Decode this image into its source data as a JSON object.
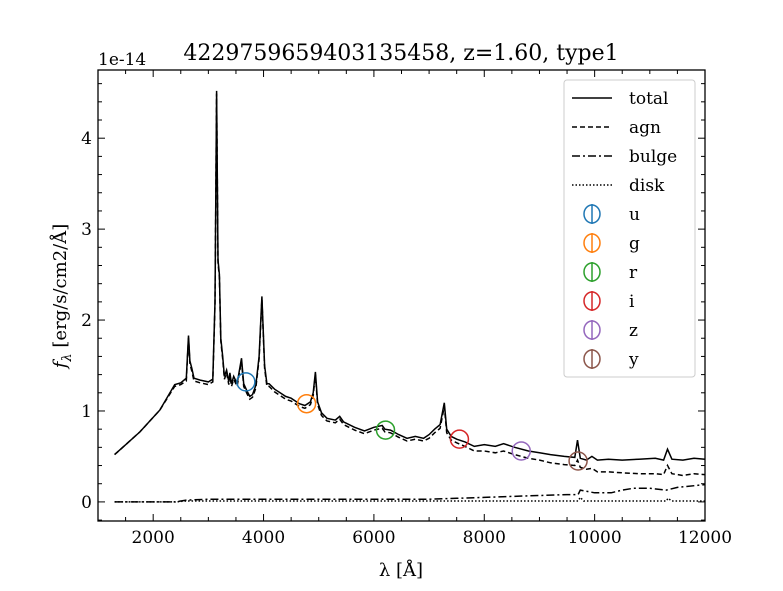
{
  "chart_data": {
    "type": "line",
    "title": "4229759659403135458, z=1.60, type1",
    "xlabel": "λ [Å]",
    "ylabel": "f_λ [erg/s/cm2/Å]",
    "ylabel_main": "f",
    "ylabel_sub": "λ",
    "ylabel_rest": " [erg/s/cm2/Å]",
    "offset_text": "1e-14",
    "xlim": [
      1000,
      12000
    ],
    "ylim": [
      -0.21,
      4.75
    ],
    "xticks": [
      2000,
      4000,
      6000,
      8000,
      10000,
      12000
    ],
    "xtick_labels": [
      "2000",
      "4000",
      "6000",
      "8000",
      "10000",
      "12000"
    ],
    "yticks": [
      0,
      1,
      2,
      3,
      4
    ],
    "ytick_labels": [
      "0",
      "1",
      "2",
      "3",
      "4"
    ],
    "legend_position": "upper right",
    "series": [
      {
        "name": "total",
        "style": "solid",
        "x": [
          1300,
          1760,
          2120,
          2390,
          2500,
          2600,
          2640,
          2665,
          2700,
          2740,
          2850,
          3000,
          3080,
          3120,
          3150,
          3175,
          3200,
          3225,
          3260,
          3290,
          3330,
          3370,
          3390,
          3420,
          3460,
          3520,
          3600,
          3640,
          3700,
          3750,
          3800,
          3860,
          3920,
          3970,
          4020,
          4060,
          4100,
          4200,
          4300,
          4400,
          4500,
          4650,
          4750,
          4850,
          4900,
          4940,
          4980,
          5050,
          5150,
          5300,
          5380,
          5450,
          5650,
          5830,
          6000,
          6150,
          6200,
          6300,
          6450,
          6600,
          6750,
          6900,
          7000,
          7100,
          7200,
          7275,
          7320,
          7400,
          7500,
          7650,
          7820,
          8000,
          8200,
          8350,
          8550,
          8800,
          9000,
          9200,
          9450,
          9640,
          9690,
          9740,
          9850,
          9950,
          10050,
          10250,
          10500,
          10800,
          11100,
          11250,
          11320,
          11400,
          11600,
          11800,
          12000
        ],
        "y": [
          0.52,
          0.77,
          1.01,
          1.29,
          1.31,
          1.36,
          1.83,
          1.55,
          1.47,
          1.36,
          1.34,
          1.32,
          1.35,
          2.2,
          4.52,
          2.66,
          2.5,
          1.8,
          1.6,
          1.38,
          1.45,
          1.32,
          1.42,
          1.3,
          1.38,
          1.3,
          1.58,
          1.3,
          1.22,
          1.16,
          1.18,
          1.28,
          1.6,
          2.26,
          1.5,
          1.3,
          1.3,
          1.24,
          1.2,
          1.16,
          1.14,
          1.08,
          1.06,
          1.1,
          1.2,
          1.43,
          1.1,
          0.98,
          0.92,
          0.9,
          0.94,
          0.88,
          0.82,
          0.78,
          0.82,
          0.84,
          0.8,
          0.79,
          0.74,
          0.7,
          0.72,
          0.7,
          0.74,
          0.8,
          0.85,
          1.09,
          0.8,
          0.72,
          0.69,
          0.66,
          0.61,
          0.63,
          0.61,
          0.64,
          0.6,
          0.56,
          0.54,
          0.52,
          0.5,
          0.49,
          0.68,
          0.48,
          0.46,
          0.5,
          0.46,
          0.47,
          0.46,
          0.47,
          0.48,
          0.46,
          0.58,
          0.47,
          0.46,
          0.48,
          0.47
        ]
      },
      {
        "name": "agn",
        "style": "dashed",
        "x": [
          1300,
          1760,
          2120,
          2390,
          2500,
          2600,
          2640,
          2665,
          2700,
          2740,
          2850,
          3000,
          3080,
          3120,
          3150,
          3175,
          3200,
          3225,
          3260,
          3290,
          3330,
          3370,
          3390,
          3420,
          3460,
          3520,
          3600,
          3640,
          3700,
          3750,
          3800,
          3860,
          3920,
          3970,
          4020,
          4060,
          4100,
          4200,
          4300,
          4400,
          4500,
          4650,
          4750,
          4850,
          4900,
          4940,
          4980,
          5050,
          5150,
          5300,
          5380,
          5450,
          5650,
          5830,
          6000,
          6150,
          6200,
          6300,
          6450,
          6600,
          6750,
          6900,
          7000,
          7100,
          7200,
          7275,
          7320,
          7400,
          7500,
          7650,
          7820,
          8000,
          8200,
          8350,
          8550,
          8800,
          9000,
          9200,
          9450,
          9640,
          9690,
          9740,
          9850,
          9950,
          10050,
          10250,
          10500,
          10800,
          11100,
          11250,
          11320,
          11400,
          11600,
          11800,
          12000
        ],
        "y": [
          0.52,
          0.77,
          1.01,
          1.27,
          1.29,
          1.33,
          1.8,
          1.52,
          1.44,
          1.33,
          1.31,
          1.29,
          1.32,
          2.17,
          4.49,
          2.63,
          2.47,
          1.77,
          1.57,
          1.35,
          1.42,
          1.29,
          1.39,
          1.27,
          1.35,
          1.27,
          1.55,
          1.27,
          1.19,
          1.13,
          1.15,
          1.25,
          1.57,
          2.23,
          1.47,
          1.27,
          1.27,
          1.21,
          1.17,
          1.13,
          1.11,
          1.05,
          1.03,
          1.07,
          1.17,
          1.4,
          1.07,
          0.95,
          0.89,
          0.87,
          0.91,
          0.85,
          0.79,
          0.75,
          0.79,
          0.81,
          0.77,
          0.76,
          0.71,
          0.67,
          0.69,
          0.67,
          0.7,
          0.76,
          0.81,
          1.05,
          0.76,
          0.68,
          0.65,
          0.61,
          0.56,
          0.56,
          0.54,
          0.56,
          0.52,
          0.48,
          0.46,
          0.43,
          0.41,
          0.4,
          0.46,
          0.38,
          0.36,
          0.37,
          0.33,
          0.33,
          0.32,
          0.31,
          0.31,
          0.3,
          0.4,
          0.31,
          0.29,
          0.31,
          0.3
        ]
      },
      {
        "name": "bulge",
        "style": "dashdot",
        "x": [
          1300,
          2000,
          2400,
          2600,
          3000,
          4000,
          5000,
          6000,
          7000,
          7500,
          8000,
          8500,
          9000,
          9500,
          9700,
          9740,
          10000,
          10300,
          10500,
          10700,
          11000,
          11300,
          11500,
          12000
        ],
        "y": [
          0,
          0,
          0,
          0.02,
          0.03,
          0.03,
          0.03,
          0.03,
          0.03,
          0.04,
          0.05,
          0.06,
          0.07,
          0.08,
          0.08,
          0.13,
          0.1,
          0.1,
          0.13,
          0.15,
          0.15,
          0.13,
          0.16,
          0.19
        ]
      },
      {
        "name": "disk",
        "style": "dotted",
        "x": [
          1300,
          2400,
          2600,
          4000,
          6000,
          8000,
          9700,
          9740,
          9800,
          11300,
          11330,
          11400,
          12000
        ],
        "y": [
          0,
          0,
          0.01,
          0.01,
          0.01,
          0.01,
          0.01,
          0.05,
          0.01,
          0.01,
          0.04,
          0.01,
          0.01
        ]
      }
    ],
    "photometry": [
      {
        "band": "u",
        "x": 3680,
        "y": 1.32,
        "color": "#1f77b4"
      },
      {
        "band": "g",
        "x": 4780,
        "y": 1.08,
        "color": "#ff7f0e"
      },
      {
        "band": "r",
        "x": 6210,
        "y": 0.79,
        "color": "#2ca02c"
      },
      {
        "band": "i",
        "x": 7550,
        "y": 0.69,
        "color": "#d62728"
      },
      {
        "band": "z",
        "x": 8670,
        "y": 0.56,
        "color": "#9467bd"
      },
      {
        "band": "y",
        "x": 9700,
        "y": 0.45,
        "color": "#8c564b"
      }
    ]
  }
}
